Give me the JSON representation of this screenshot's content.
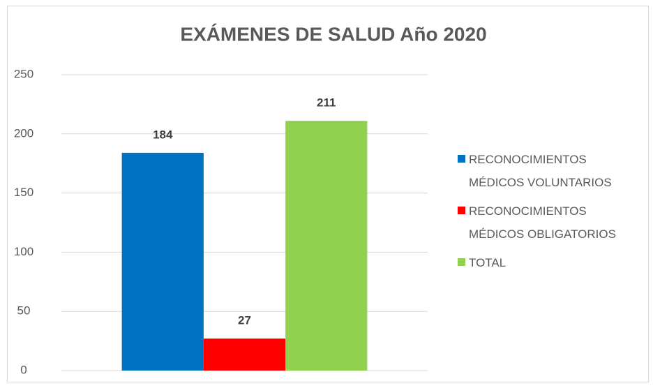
{
  "chart_data": {
    "type": "bar",
    "title": "EXÁMENES DE SALUD Año 2020",
    "categories": [
      null
    ],
    "series": [
      {
        "name": "RECONOCIMIENTOS MÉDICOS VOLUNTARIOS",
        "color": "#0070c0",
        "values": [
          184
        ]
      },
      {
        "name": "RECONOCIMIENTOS MÉDICOS OBLIGATORIOS",
        "color": "#ff0000",
        "values": [
          27
        ]
      },
      {
        "name": "TOTAL",
        "color": "#92d050",
        "values": [
          211
        ]
      }
    ],
    "ylim": [
      0,
      250
    ],
    "yticks": [
      0,
      50,
      100,
      150,
      200,
      250
    ],
    "grid": true,
    "legend": "right"
  }
}
